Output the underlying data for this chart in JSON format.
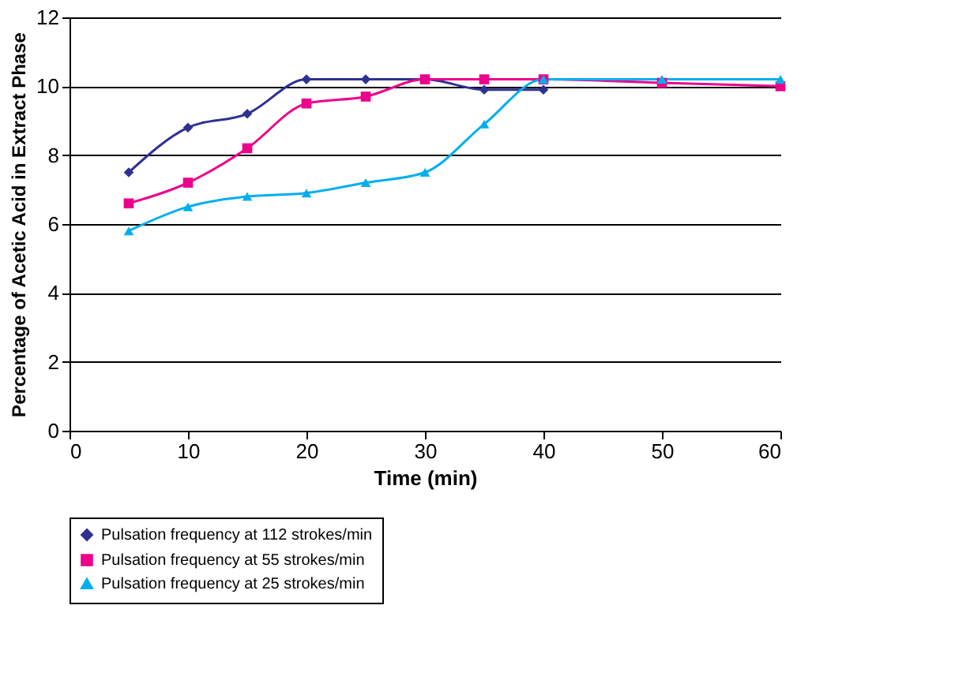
{
  "chart_data": {
    "type": "line",
    "xlabel": "Time (min)",
    "ylabel": "Percentage of Acetic Acid in Extract Phase",
    "xlim": [
      0,
      60
    ],
    "xticks": [
      0,
      10,
      20,
      30,
      40,
      50,
      60
    ],
    "ylim": [
      0,
      12
    ],
    "yticks": [
      0,
      2,
      4,
      6,
      8,
      10,
      12
    ],
    "grid": "y",
    "legend": "bottom",
    "series": [
      {
        "name": "Pulsation frequency at 112 strokes/min",
        "color": "#2e3192",
        "marker": "diamond",
        "x": [
          5,
          10,
          15,
          20,
          25,
          30,
          35,
          40
        ],
        "values": [
          7.5,
          8.8,
          9.2,
          10.2,
          10.2,
          10.2,
          9.9,
          9.9
        ]
      },
      {
        "name": "Pulsation frequency at 55 strokes/min",
        "color": "#ec008c",
        "marker": "square",
        "x": [
          5,
          10,
          15,
          20,
          25,
          30,
          35,
          40,
          50,
          60
        ],
        "values": [
          6.6,
          7.2,
          8.2,
          9.5,
          9.7,
          10.2,
          10.2,
          10.2,
          10.1,
          10.0
        ]
      },
      {
        "name": "Pulsation frequency at 25 strokes/min",
        "color": "#00aeef",
        "marker": "triangle",
        "x": [
          5,
          10,
          15,
          20,
          25,
          30,
          35,
          40,
          50,
          60
        ],
        "values": [
          5.8,
          6.5,
          6.8,
          6.9,
          7.2,
          7.5,
          8.9,
          10.2,
          10.2,
          10.2
        ]
      }
    ]
  }
}
